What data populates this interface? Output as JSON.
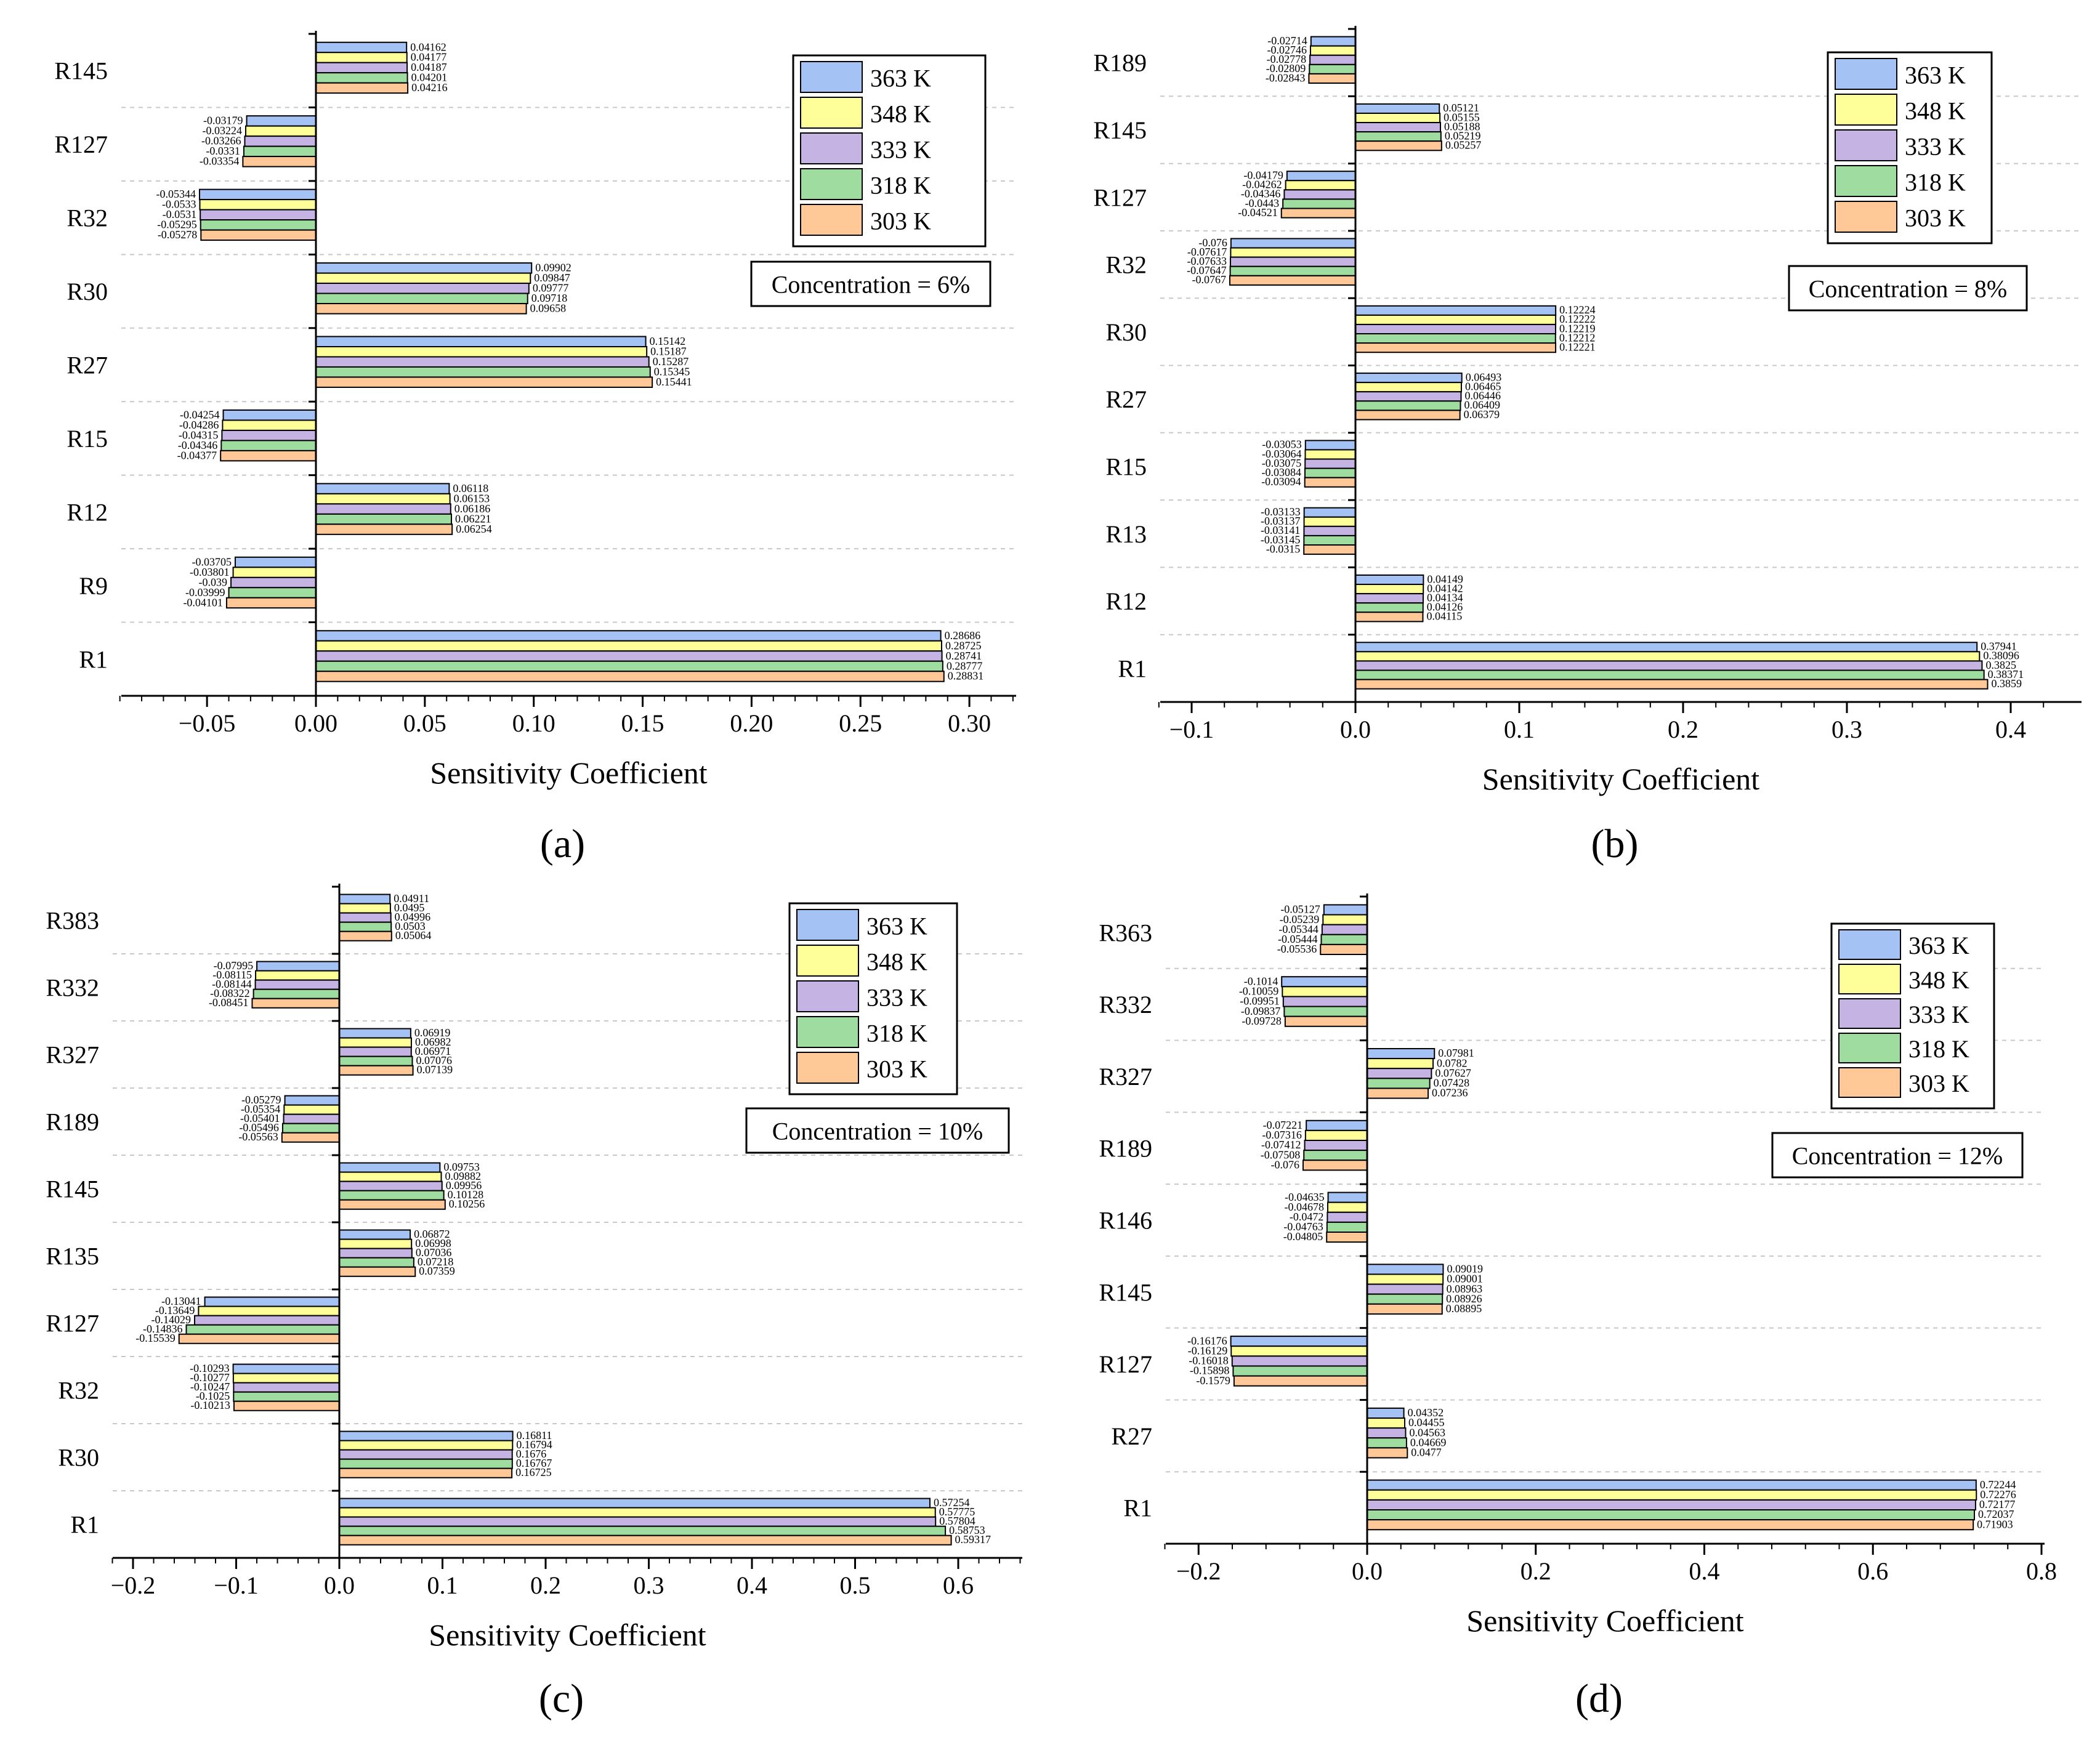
{
  "legend": {
    "entries": [
      "363 K",
      "348 K",
      "333 K",
      "318 K",
      "303 K"
    ],
    "colors": [
      "#a4c2f4",
      "#ffff99",
      "#c5b4e3",
      "#9fdc9f",
      "#ffc896"
    ]
  },
  "chart_data": [
    {
      "type": "bar",
      "orientation": "horizontal",
      "panel_label": "(a)",
      "annotation": "Concentration = 6%",
      "xlabel": "Sensitivity Coefficient",
      "xlim": [
        -0.09,
        0.32
      ],
      "xticks": [
        -0.05,
        0.0,
        0.05,
        0.1,
        0.15,
        0.2,
        0.25,
        0.3
      ],
      "xtick_labels": [
        "−0.05",
        "0.00",
        "0.05",
        "0.10",
        "0.15",
        "0.20",
        "0.25",
        "0.30"
      ],
      "minor_step": 0.01,
      "categories": [
        "R145",
        "R127",
        "R32",
        "R30",
        "R27",
        "R15",
        "R12",
        "R9",
        "R1"
      ],
      "series": [
        {
          "name": "363 K",
          "values": [
            0.04162,
            -0.03179,
            -0.05344,
            0.09902,
            0.15142,
            -0.04254,
            0.06118,
            -0.03705,
            0.28686
          ]
        },
        {
          "name": "348 K",
          "values": [
            0.04177,
            -0.03224,
            -0.0533,
            0.09847,
            0.15187,
            -0.04286,
            0.06153,
            -0.03801,
            0.28725
          ]
        },
        {
          "name": "333 K",
          "values": [
            0.04187,
            -0.03266,
            -0.0531,
            0.09777,
            0.15287,
            -0.04315,
            0.06186,
            -0.039,
            0.28741
          ]
        },
        {
          "name": "318 K",
          "values": [
            0.04201,
            -0.0331,
            -0.05295,
            0.09718,
            0.15345,
            -0.04346,
            0.06221,
            -0.03999,
            0.28777
          ]
        },
        {
          "name": "303 K",
          "values": [
            0.04216,
            -0.03354,
            -0.05278,
            0.09658,
            0.15441,
            -0.04377,
            0.06254,
            -0.04101,
            0.28831
          ]
        }
      ],
      "value_labels": [
        [
          "0.04162",
          "-0.03179",
          "-0.05344",
          "0.09902",
          "0.15142",
          "-0.04254",
          "0.06118",
          "-0.03705",
          "0.28686"
        ],
        [
          "0.04177",
          "-0.03224",
          "-0.0533",
          "0.09847",
          "0.15187",
          "-0.04286",
          "0.06153",
          "-0.03801",
          "0.28725"
        ],
        [
          "0.04187",
          "-0.03266",
          "-0.0531",
          "0.09777",
          "0.15287",
          "-0.04315",
          "0.06186",
          "-0.039",
          "0.28741"
        ],
        [
          "0.04201",
          "-0.0331",
          "-0.05295",
          "0.09718",
          "0.15345",
          "-0.04346",
          "0.06221",
          "-0.03999",
          "0.28777"
        ],
        [
          "0.04216",
          "-0.03354",
          "-0.05278",
          "0.09658",
          "0.15441",
          "-0.04377",
          "0.06254",
          "-0.04101",
          "0.28831"
        ]
      ]
    },
    {
      "type": "bar",
      "orientation": "horizontal",
      "panel_label": "(b)",
      "annotation": "Concentration = 8%",
      "xlabel": "Sensitivity Coefficient",
      "xlim": [
        -0.125,
        0.42
      ],
      "xticks": [
        -0.1,
        0.0,
        0.1,
        0.2,
        0.3,
        0.4
      ],
      "xtick_labels": [
        "−0.1",
        "0.0",
        "0.1",
        "0.2",
        "0.3",
        "0.4"
      ],
      "minor_step": 0.02,
      "categories": [
        "R189",
        "R145",
        "R127",
        "R32",
        "R30",
        "R27",
        "R15",
        "R13",
        "R12",
        "R1"
      ],
      "series": [
        {
          "name": "363 K",
          "values": [
            -0.02714,
            0.05121,
            -0.04179,
            -0.076,
            0.12224,
            0.06493,
            -0.03053,
            -0.03133,
            0.04149,
            0.37941
          ]
        },
        {
          "name": "348 K",
          "values": [
            -0.02746,
            0.05155,
            -0.04262,
            -0.07617,
            0.12222,
            0.06465,
            -0.03064,
            -0.03137,
            0.04142,
            0.38096
          ]
        },
        {
          "name": "333 K",
          "values": [
            -0.02778,
            0.05188,
            -0.04346,
            -0.07633,
            0.12219,
            0.06446,
            -0.03075,
            -0.03141,
            0.04134,
            0.3825
          ]
        },
        {
          "name": "318 K",
          "values": [
            -0.02809,
            0.05219,
            -0.0443,
            -0.07647,
            0.12212,
            0.06409,
            -0.03084,
            -0.03145,
            0.04126,
            0.38371
          ]
        },
        {
          "name": "303 K",
          "values": [
            -0.02843,
            0.05257,
            -0.04521,
            -0.0767,
            0.12221,
            0.06379,
            -0.03094,
            -0.0315,
            0.04115,
            0.3859
          ]
        }
      ],
      "value_labels": [
        [
          "-0.02714",
          "0.05121",
          "-0.04179",
          "-0.076",
          "0.12224",
          "0.06493",
          "-0.03053",
          "-0.03133",
          "0.04149",
          "0.37941"
        ],
        [
          "-0.02746",
          "0.05155",
          "-0.04262",
          "-0.07617",
          "0.12222",
          "0.06465",
          "-0.03064",
          "-0.03137",
          "0.04142",
          "0.38096"
        ],
        [
          "-0.02778",
          "0.05188",
          "-0.04346",
          "-0.07633",
          "0.12219",
          "0.06446",
          "-0.03075",
          "-0.03141",
          "0.04134",
          "0.3825"
        ],
        [
          "-0.02809",
          "0.05219",
          "-0.0443",
          "-0.07647",
          "0.12212",
          "0.06409",
          "-0.03084",
          "-0.03145",
          "0.04126",
          "0.38371"
        ],
        [
          "-0.02843",
          "0.05257",
          "-0.04521",
          "-0.0767",
          "0.12221",
          "0.06379",
          "-0.03094",
          "-0.0315",
          "0.04115",
          "0.3859"
        ]
      ]
    },
    {
      "type": "bar",
      "orientation": "horizontal",
      "panel_label": "(c)",
      "annotation": "Concentration = 10%",
      "xlabel": "Sensitivity Coefficient",
      "xlim": [
        -0.22,
        0.66
      ],
      "xticks": [
        -0.2,
        -0.1,
        0.0,
        0.1,
        0.2,
        0.3,
        0.4,
        0.5,
        0.6
      ],
      "xtick_labels": [
        "−0.2",
        "−0.1",
        "0.0",
        "0.1",
        "0.2",
        "0.3",
        "0.4",
        "0.5",
        "0.6"
      ],
      "minor_step": 0.02,
      "categories": [
        "R383",
        "R332",
        "R327",
        "R189",
        "R145",
        "R135",
        "R127",
        "R32",
        "R30",
        "R1"
      ],
      "series": [
        {
          "name": "363 K",
          "values": [
            0.04911,
            -0.07995,
            0.06919,
            -0.05279,
            0.09753,
            0.06872,
            -0.13041,
            -0.10293,
            0.16811,
            0.57254
          ]
        },
        {
          "name": "348 K",
          "values": [
            0.0495,
            -0.08115,
            0.06982,
            -0.05354,
            0.09882,
            0.06998,
            -0.13649,
            -0.10277,
            0.16794,
            0.57775
          ]
        },
        {
          "name": "333 K",
          "values": [
            0.04996,
            -0.08144,
            0.06971,
            -0.05401,
            0.09956,
            0.07036,
            -0.14029,
            -0.10247,
            0.1676,
            0.57804
          ]
        },
        {
          "name": "318 K",
          "values": [
            0.0503,
            -0.08322,
            0.07076,
            -0.05496,
            0.10128,
            0.07218,
            -0.14836,
            -0.1025,
            0.16767,
            0.58753
          ]
        },
        {
          "name": "303 K",
          "values": [
            0.05064,
            -0.08451,
            0.07139,
            -0.05563,
            0.10256,
            0.07359,
            -0.15539,
            -0.10213,
            0.16725,
            0.59317
          ]
        }
      ],
      "value_labels": [
        [
          "0.04911",
          "-0.07995",
          "0.06919",
          "-0.05279",
          "0.09753",
          "0.06872",
          "-0.13041",
          "-0.10293",
          "0.16811",
          "0.57254"
        ],
        [
          "0.0495",
          "-0.08115",
          "0.06982",
          "-0.05354",
          "0.09882",
          "0.06998",
          "-0.13649",
          "-0.10277",
          "0.16794",
          "0.57775"
        ],
        [
          "0.04996",
          "-0.08144",
          "0.06971",
          "-0.05401",
          "0.09956",
          "0.07036",
          "-0.14029",
          "-0.10247",
          "0.1676",
          "0.57804"
        ],
        [
          "0.0503",
          "-0.08322",
          "0.07076",
          "-0.05496",
          "0.10128",
          "0.07218",
          "-0.14836",
          "-0.1025",
          "0.16767",
          "0.58753"
        ],
        [
          "0.05064",
          "-0.08451",
          "0.07139",
          "-0.05563",
          "0.10256",
          "0.07359",
          "-0.15539",
          "-0.10213",
          "0.16725",
          "0.59317"
        ]
      ]
    },
    {
      "type": "bar",
      "orientation": "horizontal",
      "panel_label": "(d)",
      "annotation": "Concentration = 12%",
      "xlabel": "Sensitivity Coefficient",
      "xlim": [
        -0.24,
        0.8
      ],
      "xticks": [
        -0.2,
        0.0,
        0.2,
        0.4,
        0.6,
        0.8
      ],
      "xtick_labels": [
        "−0.2",
        "0.0",
        "0.2",
        "0.4",
        "0.6",
        "0.8"
      ],
      "minor_step": 0.04,
      "categories": [
        "R363",
        "R332",
        "R327",
        "R189",
        "R146",
        "R145",
        "R127",
        "R27",
        "R1"
      ],
      "series": [
        {
          "name": "363 K",
          "values": [
            -0.05127,
            -0.1014,
            0.07981,
            -0.07221,
            -0.04635,
            0.09019,
            -0.16176,
            0.04352,
            0.72244
          ]
        },
        {
          "name": "348 K",
          "values": [
            -0.05239,
            -0.10059,
            0.0782,
            -0.07316,
            -0.04678,
            0.09001,
            -0.16129,
            0.04455,
            0.72276
          ]
        },
        {
          "name": "333 K",
          "values": [
            -0.05344,
            -0.09951,
            0.07627,
            -0.07412,
            -0.0472,
            0.08963,
            -0.16018,
            0.04563,
            0.72177
          ]
        },
        {
          "name": "318 K",
          "values": [
            -0.05444,
            -0.09837,
            0.07428,
            -0.07508,
            -0.04763,
            0.08926,
            -0.15898,
            0.04669,
            0.72037
          ]
        },
        {
          "name": "303 K",
          "values": [
            -0.05536,
            -0.09728,
            0.07236,
            -0.076,
            -0.04805,
            0.08895,
            -0.1579,
            0.0477,
            0.71903
          ]
        }
      ],
      "value_labels": [
        [
          "-0.05127",
          "-0.1014",
          "0.07981",
          "-0.07221",
          "-0.04635",
          "0.09019",
          "-0.16176",
          "0.04352",
          "0.72244"
        ],
        [
          "-0.05239",
          "-0.10059",
          "0.0782",
          "-0.07316",
          "-0.04678",
          "0.09001",
          "-0.16129",
          "0.04455",
          "0.72276"
        ],
        [
          "-0.05344",
          "-0.09951",
          "0.07627",
          "-0.07412",
          "-0.0472",
          "0.08963",
          "-0.16018",
          "0.04563",
          "0.72177"
        ],
        [
          "-0.05444",
          "-0.09837",
          "0.07428",
          "-0.07508",
          "-0.04763",
          "0.08926",
          "-0.15898",
          "0.04669",
          "0.72037"
        ],
        [
          "-0.05536",
          "-0.09728",
          "0.07236",
          "-0.076",
          "-0.04805",
          "0.08895",
          "-0.1579",
          "0.0477",
          "0.71903"
        ]
      ]
    }
  ]
}
